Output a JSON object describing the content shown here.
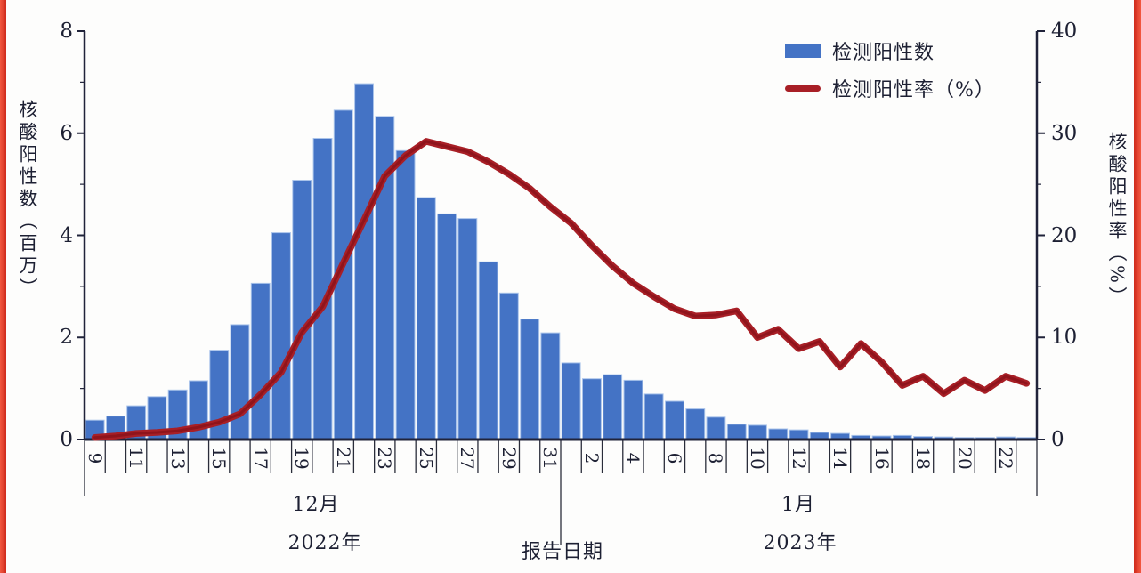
{
  "page": {
    "background": "#fdfdfc",
    "edge_strip_color": "#e03a2a"
  },
  "chart_data": {
    "type": "bar+line combo",
    "title": "",
    "x_axis": {
      "title": "报告日期",
      "label_interval": 2,
      "label_rotation_deg": 90,
      "groups": [
        {
          "month_label": "12月",
          "year_label": "2022年",
          "days": 23
        },
        {
          "month_label": "1月",
          "year_label": "2023年",
          "days": 23
        }
      ]
    },
    "left_axis": {
      "title": "核酸阳性数（百万）",
      "range": [
        0,
        8
      ],
      "ticks": [
        0,
        2,
        4,
        6,
        8
      ],
      "minor_ticks": [
        1,
        3,
        5,
        7
      ]
    },
    "right_axis": {
      "title": "核酸阳性率（%）",
      "range": [
        0,
        40
      ],
      "ticks": [
        0,
        10,
        20,
        30,
        40
      ],
      "minor_ticks": [
        5,
        15,
        25,
        35
      ]
    },
    "legend": {
      "position": "top-right",
      "bar_label": "检测阳性数",
      "line_label": "检测阳性率（%）"
    },
    "categories": [
      "9",
      "10",
      "11",
      "12",
      "13",
      "14",
      "15",
      "16",
      "17",
      "18",
      "19",
      "20",
      "21",
      "22",
      "23",
      "24",
      "25",
      "26",
      "27",
      "28",
      "29",
      "30",
      "31",
      "1",
      "2",
      "3",
      "4",
      "5",
      "6",
      "7",
      "8",
      "9",
      "10",
      "11",
      "12",
      "13",
      "14",
      "15",
      "16",
      "17",
      "18",
      "19",
      "20",
      "21",
      "22",
      "23"
    ],
    "series": [
      {
        "name": "检测阳性数",
        "type": "bar",
        "axis": "left",
        "unit": "百万",
        "values": [
          0.38,
          0.46,
          0.66,
          0.84,
          0.97,
          1.15,
          1.75,
          2.25,
          3.06,
          4.05,
          5.08,
          5.9,
          6.45,
          6.97,
          6.33,
          5.66,
          4.74,
          4.42,
          4.33,
          3.48,
          2.87,
          2.36,
          2.09,
          1.5,
          1.19,
          1.27,
          1.16,
          0.89,
          0.75,
          0.6,
          0.44,
          0.3,
          0.28,
          0.21,
          0.19,
          0.14,
          0.12,
          0.08,
          0.07,
          0.08,
          0.06,
          0.05,
          0.04,
          0.04,
          0.05,
          0.04
        ]
      },
      {
        "name": "检测阳性率（%）",
        "type": "line",
        "axis": "right",
        "unit": "%",
        "values": [
          0.2,
          0.35,
          0.6,
          0.7,
          0.85,
          1.2,
          1.7,
          2.5,
          4.4,
          6.6,
          10.5,
          13.0,
          17.3,
          21.5,
          25.8,
          27.8,
          29.2,
          28.7,
          28.2,
          27.2,
          26.0,
          24.6,
          22.8,
          21.2,
          19.0,
          17.0,
          15.3,
          14.0,
          12.8,
          12.1,
          12.2,
          12.6,
          10.0,
          10.8,
          8.9,
          9.6,
          7.1,
          9.4,
          7.6,
          5.3,
          6.2,
          4.5,
          5.8,
          4.8,
          6.2,
          5.5
        ]
      }
    ],
    "grid": "off",
    "colors": {
      "bar": "#4473c5",
      "bar_edge": "#a9c3ea",
      "line": "#a81f26",
      "line_core": "#8f141c",
      "axis": "#20233a",
      "text": "#1d2033"
    }
  }
}
